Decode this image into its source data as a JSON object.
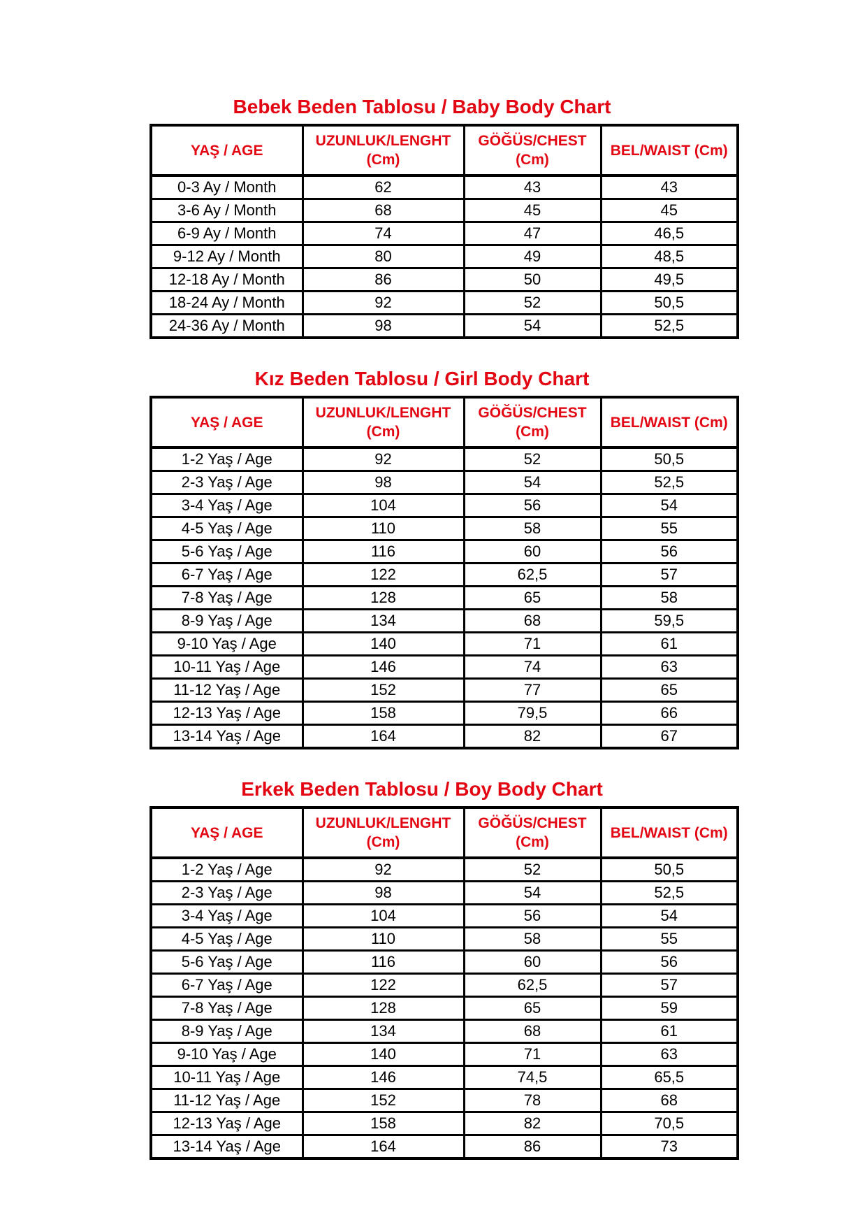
{
  "page": {
    "background_color": "#ffffff",
    "accent_red": "#e30613",
    "text_color": "#000000",
    "border_color": "#000000"
  },
  "tables": [
    {
      "id": "baby",
      "title": "Bebek Beden Tablosu / Baby Body Chart",
      "columns": [
        {
          "label": "YAŞ / AGE",
          "unit": ""
        },
        {
          "label": "UZUNLUK/LENGHT",
          "unit": "(Cm)"
        },
        {
          "label": "GÖĞÜS/CHEST",
          "unit": "(Cm)"
        },
        {
          "label": "BEL/WAIST (Cm)",
          "unit": ""
        }
      ],
      "rows": [
        [
          "0-3 Ay / Month",
          "62",
          "43",
          "43"
        ],
        [
          "3-6 Ay / Month",
          "68",
          "45",
          "45"
        ],
        [
          "6-9 Ay / Month",
          "74",
          "47",
          "46,5"
        ],
        [
          "9-12 Ay / Month",
          "80",
          "49",
          "48,5"
        ],
        [
          "12-18 Ay / Month",
          "86",
          "50",
          "49,5"
        ],
        [
          "18-24 Ay / Month",
          "92",
          "52",
          "50,5"
        ],
        [
          "24-36 Ay / Month",
          "98",
          "54",
          "52,5"
        ]
      ]
    },
    {
      "id": "girl",
      "title": "Kız Beden Tablosu / Girl Body Chart",
      "columns": [
        {
          "label": "YAŞ / AGE",
          "unit": ""
        },
        {
          "label": "UZUNLUK/LENGHT",
          "unit": "(Cm)"
        },
        {
          "label": "GÖĞÜS/CHEST",
          "unit": "(Cm)"
        },
        {
          "label": "BEL/WAIST (Cm)",
          "unit": ""
        }
      ],
      "rows": [
        [
          "1-2 Yaş / Age",
          "92",
          "52",
          "50,5"
        ],
        [
          "2-3 Yaş / Age",
          "98",
          "54",
          "52,5"
        ],
        [
          "3-4 Yaş / Age",
          "104",
          "56",
          "54"
        ],
        [
          "4-5 Yaş / Age",
          "110",
          "58",
          "55"
        ],
        [
          "5-6 Yaş / Age",
          "116",
          "60",
          "56"
        ],
        [
          "6-7 Yaş / Age",
          "122",
          "62,5",
          "57"
        ],
        [
          "7-8 Yaş / Age",
          "128",
          "65",
          "58"
        ],
        [
          "8-9 Yaş / Age",
          "134",
          "68",
          "59,5"
        ],
        [
          "9-10 Yaş / Age",
          "140",
          "71",
          "61"
        ],
        [
          "10-11 Yaş / Age",
          "146",
          "74",
          "63"
        ],
        [
          "11-12 Yaş / Age",
          "152",
          "77",
          "65"
        ],
        [
          "12-13 Yaş / Age",
          "158",
          "79,5",
          "66"
        ],
        [
          "13-14 Yaş / Age",
          "164",
          "82",
          "67"
        ]
      ]
    },
    {
      "id": "boy",
      "title": "Erkek Beden Tablosu / Boy Body Chart",
      "columns": [
        {
          "label": "YAŞ / AGE",
          "unit": ""
        },
        {
          "label": "UZUNLUK/LENGHT",
          "unit": "(Cm)"
        },
        {
          "label": "GÖĞÜS/CHEST",
          "unit": "(Cm)"
        },
        {
          "label": "BEL/WAIST (Cm)",
          "unit": ""
        }
      ],
      "rows": [
        [
          "1-2 Yaş / Age",
          "92",
          "52",
          "50,5"
        ],
        [
          "2-3 Yaş / Age",
          "98",
          "54",
          "52,5"
        ],
        [
          "3-4 Yaş / Age",
          "104",
          "56",
          "54"
        ],
        [
          "4-5 Yaş / Age",
          "110",
          "58",
          "55"
        ],
        [
          "5-6 Yaş / Age",
          "116",
          "60",
          "56"
        ],
        [
          "6-7 Yaş / Age",
          "122",
          "62,5",
          "57"
        ],
        [
          "7-8 Yaş / Age",
          "128",
          "65",
          "59"
        ],
        [
          "8-9 Yaş / Age",
          "134",
          "68",
          "61"
        ],
        [
          "9-10 Yaş / Age",
          "140",
          "71",
          "63"
        ],
        [
          "10-11 Yaş / Age",
          "146",
          "74,5",
          "65,5"
        ],
        [
          "11-12 Yaş / Age",
          "152",
          "78",
          "68"
        ],
        [
          "12-13 Yaş / Age",
          "158",
          "82",
          "70,5"
        ],
        [
          "13-14 Yaş / Age",
          "164",
          "86",
          "73"
        ]
      ]
    }
  ]
}
